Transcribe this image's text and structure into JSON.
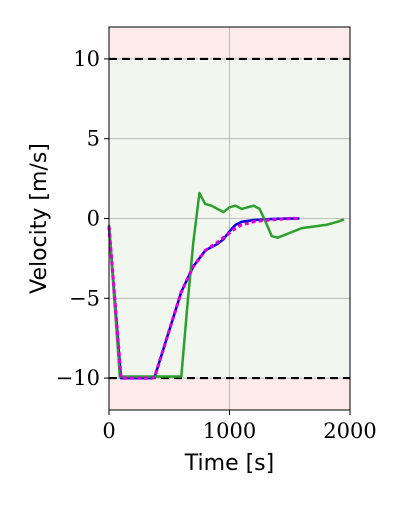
{
  "chart_data": {
    "type": "line",
    "xlabel": "Time [s]",
    "ylabel": "Velocity [m/s]",
    "xlim": [
      0,
      2000
    ],
    "ylim": [
      -12,
      12
    ],
    "x_ticks": [
      0,
      1000,
      2000
    ],
    "y_ticks": [
      -10,
      -5,
      0,
      5,
      10
    ],
    "x_tick_labels": [
      "0",
      "1000",
      "2000"
    ],
    "y_tick_labels": [
      "−10",
      "−5",
      "0",
      "5",
      "10"
    ],
    "grid": true,
    "bounds": {
      "upper": 10,
      "lower": -10,
      "style": "dashed",
      "color": "#000000"
    },
    "regions": [
      {
        "from": 10,
        "to": 12,
        "color": "#fdeaea"
      },
      {
        "from": -10,
        "to": 10,
        "color": "#f1f7ee"
      },
      {
        "from": -12,
        "to": -10,
        "color": "#fdeaea"
      }
    ],
    "series": [
      {
        "color": "#0000dd",
        "style": "solid",
        "x": [
          0,
          100,
          130,
          360,
          380,
          500,
          600,
          700,
          800,
          900,
          950,
          1000,
          1050,
          1100,
          1200,
          1300,
          1400,
          1500,
          1580
        ],
        "y": [
          -0.5,
          -10,
          -10,
          -10,
          -9.9,
          -7.0,
          -4.6,
          -3.0,
          -2.0,
          -1.6,
          -1.3,
          -0.8,
          -0.4,
          -0.2,
          -0.1,
          -0.05,
          -0.02,
          0,
          0
        ]
      },
      {
        "color": "#2ca02c",
        "style": "solid",
        "x": [
          0,
          90,
          120,
          300,
          400,
          500,
          600,
          650,
          700,
          750,
          770,
          800,
          850,
          900,
          950,
          1000,
          1050,
          1100,
          1150,
          1200,
          1250,
          1300,
          1350,
          1400,
          1500,
          1600,
          1700,
          1800,
          1900,
          1950
        ],
        "y": [
          -0.4,
          -9.9,
          -9.9,
          -9.9,
          -9.9,
          -9.9,
          -9.9,
          -5.5,
          -1.5,
          1.6,
          1.3,
          0.9,
          0.8,
          0.6,
          0.4,
          0.7,
          0.8,
          0.6,
          0.7,
          0.8,
          0.6,
          -0.2,
          -1.1,
          -1.2,
          -0.9,
          -0.6,
          -0.5,
          -0.4,
          -0.2,
          -0.05
        ]
      },
      {
        "color": "#dd00dd",
        "style": "dotted",
        "x": [
          0,
          100,
          130,
          360,
          380,
          500,
          600,
          700,
          800,
          900,
          950,
          1000,
          1050,
          1100,
          1200,
          1300,
          1400,
          1500,
          1580
        ],
        "y": [
          -0.5,
          -10,
          -10,
          -10,
          -9.9,
          -7.0,
          -4.6,
          -3.0,
          -2.0,
          -1.5,
          -1.2,
          -0.9,
          -0.6,
          -0.4,
          -0.2,
          -0.1,
          -0.05,
          0,
          0
        ]
      }
    ]
  }
}
